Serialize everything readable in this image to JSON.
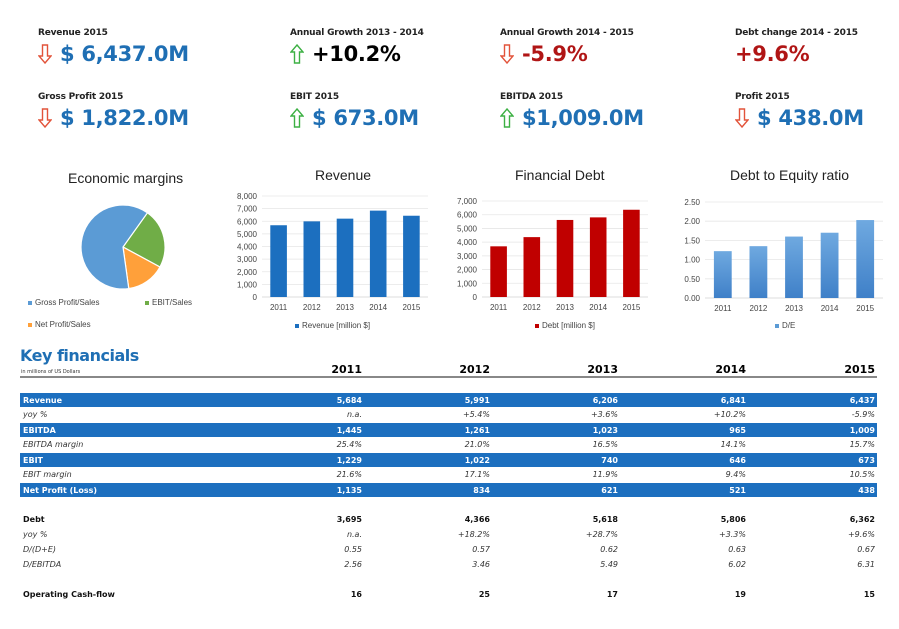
{
  "kpis": [
    {
      "label": "Revenue 2015",
      "value": "$ 6,437.0M",
      "arrow": "down",
      "color": "#1f6fb4"
    },
    {
      "label": "Annual Growth 2013 - 2014",
      "value": "+10.2%",
      "arrow": "up",
      "color": "#000000"
    },
    {
      "label": "Annual Growth 2014 - 2015",
      "value": "-5.9%",
      "arrow": "down",
      "color": "#b01515"
    },
    {
      "label": "Debt change 2014 - 2015",
      "value": "+9.6%",
      "arrow": "none",
      "color": "#b01515"
    },
    {
      "label": "Gross Profit 2015",
      "value": "$ 1,822.0M",
      "arrow": "down",
      "color": "#1f6fb4"
    },
    {
      "label": "EBIT 2015",
      "value": "$ 673.0M",
      "arrow": "up",
      "color": "#1f6fb4"
    },
    {
      "label": "EBITDA 2015",
      "value": "$1,009.0M",
      "arrow": "up",
      "color": "#1f6fb4"
    },
    {
      "label": "Profit 2015",
      "value": "$ 438.0M",
      "arrow": "down",
      "color": "#1f6fb4"
    }
  ],
  "colors": {
    "up_arrow": "#3cb043",
    "down_arrow": "#e2533a",
    "table_blue": "#1c6fbf"
  },
  "chart_data": [
    {
      "type": "pie",
      "title": "Economic margins",
      "categories": [
        "Gross Profit/Sales",
        "EBIT/Sales",
        "Net Profit/Sales"
      ],
      "values": [
        28.3,
        10.5,
        6.8
      ],
      "colors": [
        "#5b9bd5",
        "#70ad47",
        "#ffa03a"
      ],
      "legend": "bottom"
    },
    {
      "type": "bar",
      "title": "Revenue",
      "categories": [
        "2011",
        "2012",
        "2013",
        "2014",
        "2015"
      ],
      "series": [
        {
          "name": "Revenue [million $]",
          "values": [
            5684,
            5991,
            6206,
            6841,
            6437
          ],
          "color": "#1c6fbf"
        }
      ],
      "ylim": [
        0,
        8000
      ],
      "yticks": [
        "0",
        "1,000",
        "2,000",
        "3,000",
        "4,000",
        "5,000",
        "6,000",
        "7,000",
        "8,000"
      ],
      "grid": true,
      "legend": "bottom"
    },
    {
      "type": "bar",
      "title": "Financial Debt",
      "categories": [
        "2011",
        "2012",
        "2013",
        "2014",
        "2015"
      ],
      "series": [
        {
          "name": "Debt [million $]",
          "values": [
            3695,
            4366,
            5618,
            5806,
            6362
          ],
          "color": "#c00000"
        }
      ],
      "ylim": [
        0,
        7000
      ],
      "yticks": [
        "0",
        "1,000",
        "2,000",
        "3,000",
        "4,000",
        "5,000",
        "6,000",
        "7,000"
      ],
      "grid": true,
      "legend": "bottom"
    },
    {
      "type": "bar",
      "title": "Debt to Equity ratio",
      "categories": [
        "2011",
        "2012",
        "2013",
        "2014",
        "2015"
      ],
      "series": [
        {
          "name": "D/E",
          "values": [
            1.22,
            1.35,
            1.6,
            1.7,
            2.03
          ],
          "color": "#5b9bd5"
        }
      ],
      "ylim": [
        0,
        2.5
      ],
      "yticks": [
        "0.00",
        "0.50",
        "1.00",
        "1.50",
        "2.00",
        "2.50"
      ],
      "grid": true,
      "legend": "bottom"
    }
  ],
  "key_financials": {
    "title": "Key financials",
    "subtitle": "in millions of US Dollars",
    "years": [
      "2011",
      "2012",
      "2013",
      "2014",
      "2015"
    ],
    "rows": [
      {
        "label": "Revenue",
        "style": "blue",
        "values": [
          "5,684",
          "5,991",
          "6,206",
          "6,841",
          "6,437"
        ]
      },
      {
        "label": "yoy %",
        "style": "ital",
        "values": [
          "n.a.",
          "+5.4%",
          "+3.6%",
          "+10.2%",
          "-5.9%"
        ]
      },
      {
        "label": "EBITDA",
        "style": "blue",
        "values": [
          "1,445",
          "1,261",
          "1,023",
          "965",
          "1,009"
        ]
      },
      {
        "label": "EBITDA margin",
        "style": "ital",
        "values": [
          "25.4%",
          "21.0%",
          "16.5%",
          "14.1%",
          "15.7%"
        ]
      },
      {
        "label": "EBIT",
        "style": "blue",
        "values": [
          "1,229",
          "1,022",
          "740",
          "646",
          "673"
        ]
      },
      {
        "label": "EBIT margin",
        "style": "ital",
        "values": [
          "21.6%",
          "17.1%",
          "11.9%",
          "9.4%",
          "10.5%"
        ]
      },
      {
        "label": "Net Profit (Loss)",
        "style": "blue",
        "values": [
          "1,135",
          "834",
          "621",
          "521",
          "438"
        ]
      },
      {
        "label": "",
        "style": "gap",
        "values": []
      },
      {
        "label": "Debt",
        "style": "bold",
        "values": [
          "3,695",
          "4,366",
          "5,618",
          "5,806",
          "6,362"
        ]
      },
      {
        "label": "yoy %",
        "style": "ital",
        "values": [
          "n.a.",
          "+18.2%",
          "+28.7%",
          "+3.3%",
          "+9.6%"
        ]
      },
      {
        "label": "D/(D+E)",
        "style": "ital",
        "values": [
          "0.55",
          "0.57",
          "0.62",
          "0.63",
          "0.67"
        ]
      },
      {
        "label": "D/EBITDA",
        "style": "ital",
        "values": [
          "2.56",
          "3.46",
          "5.49",
          "6.02",
          "6.31"
        ]
      },
      {
        "label": "",
        "style": "gap",
        "values": []
      },
      {
        "label": "Operating Cash-flow",
        "style": "bold",
        "values": [
          "16",
          "25",
          "17",
          "19",
          "15"
        ]
      }
    ]
  }
}
